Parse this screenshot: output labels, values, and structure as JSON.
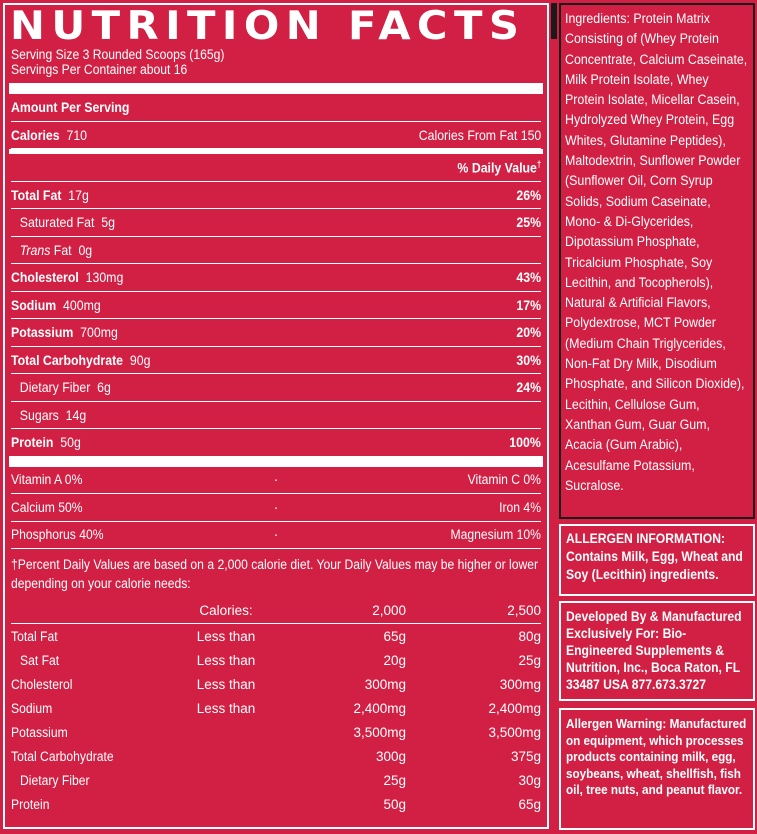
{
  "label": {
    "title": "NUTRITION FACTS",
    "serving_size": "Serving Size 3 Rounded Scoops (165g)",
    "servings_per_container": "Servings Per Container about 16",
    "amount_per_serving": "Amount Per Serving",
    "calories_label": "Calories",
    "calories_value": "710",
    "calories_from_fat": "Calories From Fat  150",
    "daily_value_header": "% Daily Value",
    "dagger": "†",
    "nutrients": [
      {
        "name": "Total Fat",
        "amount": "17g",
        "pct": "26%"
      },
      {
        "name": "Saturated Fat",
        "amount": "5g",
        "pct": "25%"
      },
      {
        "name": "Trans",
        "name_suffix": "Fat",
        "amount": "0g",
        "pct": ""
      },
      {
        "name": "Cholesterol",
        "amount": "130mg",
        "pct": "43%"
      },
      {
        "name": "Sodium",
        "amount": "400mg",
        "pct": "17%"
      },
      {
        "name": "Potassium",
        "amount": "700mg",
        "pct": "20%"
      },
      {
        "name": "Total Carbohydrate",
        "amount": "90g",
        "pct": "30%"
      },
      {
        "name": "Dietary Fiber",
        "amount": "6g",
        "pct": "24%"
      },
      {
        "name": "Sugars",
        "amount": "14g",
        "pct": ""
      },
      {
        "name": "Protein",
        "amount": "50g",
        "pct": "100%"
      }
    ],
    "vitamins": [
      {
        "left": "Vitamin A  0%",
        "right": "Vitamin C  0%"
      },
      {
        "left": "Calcium  50%",
        "right": "Iron  4%"
      },
      {
        "left": "Phosphorus  40%",
        "right": "Magnesium  10%"
      }
    ],
    "footnote": "†Percent Daily Values are based on a 2,000 calorie diet. Your Daily Values may be higher or lower depending on your calorie needs:",
    "dv_table": {
      "header": {
        "c1": "Calories:",
        "c2": "2,000",
        "c3": "2,500"
      },
      "rows": [
        {
          "name": "Total Fat",
          "c1": "Less than",
          "c2": "65g",
          "c3": "80g"
        },
        {
          "name": "Sat Fat",
          "c1": "Less than",
          "c2": "20g",
          "c3": "25g"
        },
        {
          "name": "Cholesterol",
          "c1": "Less than",
          "c2": "300mg",
          "c3": "300mg"
        },
        {
          "name": "Sodium",
          "c1": "Less than",
          "c2": "2,400mg",
          "c3": "2,400mg"
        },
        {
          "name": "Potassium",
          "c1": "",
          "c2": "3,500mg",
          "c3": "3,500mg"
        },
        {
          "name": "Total Carbohydrate",
          "c1": "",
          "c2": "300g",
          "c3": "375g"
        },
        {
          "name": "Dietary Fiber",
          "c1": "",
          "c2": "25g",
          "c3": "30g"
        },
        {
          "name": "Protein",
          "c1": "",
          "c2": "50g",
          "c3": "65g"
        }
      ]
    }
  },
  "ingredients": "Ingredients: Protein Matrix Consisting of (Whey Protein Concentrate, Calcium Caseinate, Milk Protein Isolate, Whey Protein Isolate, Micellar Casein, Hydrolyzed Whey Protein, Egg Whites, Glutamine Peptides), Maltodextrin, Sunflower Powder (Sunflower Oil, Corn Syrup Solids, Sodium Caseinate, Mono- & Di-Glycerides, Dipotassium Phosphate, Tricalcium Phosphate, Soy Lecithin, and Tocopherols), Natural & Artificial Flavors, Polydextrose, MCT Powder (Medium Chain Triglycerides, Non-Fat Dry Milk, Disodium Phosphate, and Silicon Dioxide), Lecithin, Cellulose Gum, Xanthan Gum, Guar Gum, Acacia (Gum Arabic), Acesulfame Potassium, Sucralose.",
  "allergen_info": "ALLERGEN INFORMATION: Contains Milk, Egg, Wheat and Soy (Lecithin) ingredients.",
  "developed_by": "Developed By & Manufactured Exclusively For: Bio-Engineered Supplements & Nutrition, Inc., Boca Raton, FL 33487 USA 877.673.3727",
  "allergen_warning": "Allergen Warning: Manufactured on equipment, which processes products containing milk, egg, soybeans, wheat, shellfish, fish oil, tree nuts, and peanut flavor.",
  "colors": {
    "background": "#d21f44",
    "text": "#ffffff"
  }
}
